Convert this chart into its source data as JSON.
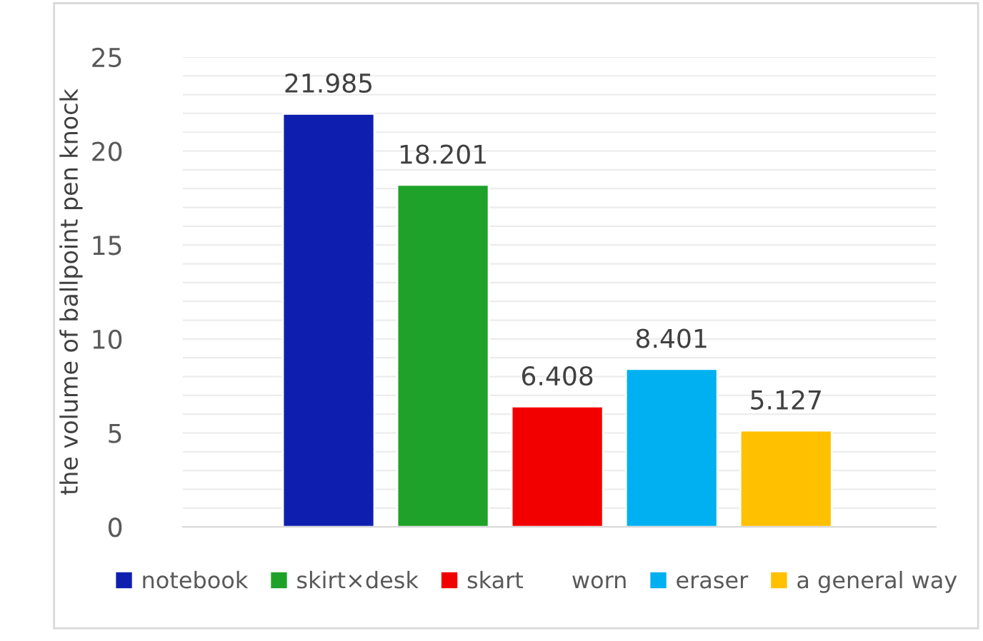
{
  "chart_data": {
    "type": "bar",
    "ylabel": "the volume of ballpoint pen knock",
    "categories": [
      null
    ],
    "series": [
      {
        "name": "notebook",
        "color": "#0e1fb0",
        "values": [
          21.985
        ]
      },
      {
        "name": "skirt×desk",
        "color": "#1ea229",
        "values": [
          18.201
        ]
      },
      {
        "name": "skart",
        "color": "#f20000",
        "values": [
          6.408
        ]
      },
      {
        "name": "worn",
        "values": [
          null
        ]
      },
      {
        "name": "eraser",
        "color": "#00b0f0",
        "values": [
          8.401
        ]
      },
      {
        "name": "a general way",
        "color": "#ffc000",
        "values": [
          5.127
        ]
      }
    ],
    "ylim": [
      0,
      25
    ],
    "yticks": [
      0,
      {
        "value": 1,
        "label": null
      },
      {
        "value": 2,
        "label": null
      },
      {
        "value": 3,
        "label": null
      },
      {
        "value": 4,
        "label": null
      },
      5,
      {
        "value": 6,
        "label": null
      },
      {
        "value": 7,
        "label": null
      },
      {
        "value": 8,
        "label": null
      },
      {
        "value": 9,
        "label": null
      },
      10,
      {
        "value": 11,
        "label": null
      },
      {
        "value": 12,
        "label": null
      },
      {
        "value": 13,
        "label": null
      },
      {
        "value": 14,
        "label": null
      },
      15,
      {
        "value": 16,
        "label": null
      },
      {
        "value": 17,
        "label": null
      },
      {
        "value": 18,
        "label": null
      },
      {
        "value": 19,
        "label": null
      },
      20,
      {
        "value": 21,
        "label": null
      },
      {
        "value": 22,
        "label": null
      },
      {
        "value": 23,
        "label": null
      },
      {
        "value": 24,
        "label": null
      },
      25
    ],
    "grid": "y",
    "legend": "bottom",
    "data_labels": true
  }
}
